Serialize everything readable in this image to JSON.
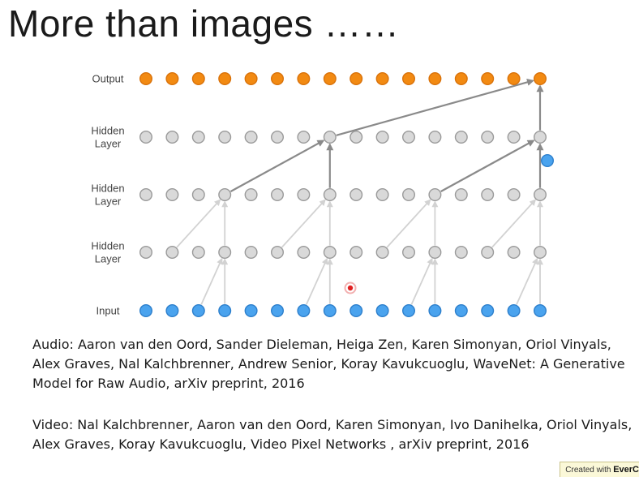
{
  "slide": {
    "title": "More than images ……"
  },
  "diagram": {
    "layers": [
      {
        "name": "output",
        "label_lines": [
          "Output"
        ],
        "color": "#f28a12"
      },
      {
        "name": "hidden-3",
        "label_lines": [
          "Hidden",
          "Layer"
        ],
        "color": "#d9d9d9"
      },
      {
        "name": "hidden-2",
        "label_lines": [
          "Hidden",
          "Layer"
        ],
        "color": "#d9d9d9"
      },
      {
        "name": "hidden-1",
        "label_lines": [
          "Hidden",
          "Layer"
        ],
        "color": "#d9d9d9"
      },
      {
        "name": "input",
        "label_lines": [
          "Input"
        ],
        "color": "#4aa3ee"
      }
    ],
    "nodes_per_layer": 16,
    "colors": {
      "output_node": "#f28a12",
      "hidden_node": "#d9d9d9",
      "hidden_stroke": "#9a9a9a",
      "input_node": "#4aa3ee",
      "input_stroke": "#2d7fcc",
      "arrow_light": "#d2d2d2",
      "arrow_dark": "#8a8a8a",
      "cursor_red": "#e02020"
    }
  },
  "references": {
    "audio": "Audio: Aaron van den Oord, Sander Dieleman, Heiga Zen, Karen Simonyan, Oriol Vinyals, Alex Graves, Nal Kalchbrenner, Andrew Senior, Koray Kavukcuoglu, WaveNet: A Generative Model for Raw Audio, arXiv preprint, 2016",
    "video": "Video: Nal Kalchbrenner, Aaron van den Oord, Karen Simonyan, Ivo Danihelka, Oriol Vinyals, Alex Graves, Koray Kavukcuoglu, Video Pixel Networks , arXiv preprint, 2016"
  },
  "watermark": {
    "prefix": "Created with",
    "brand": "EverC"
  }
}
